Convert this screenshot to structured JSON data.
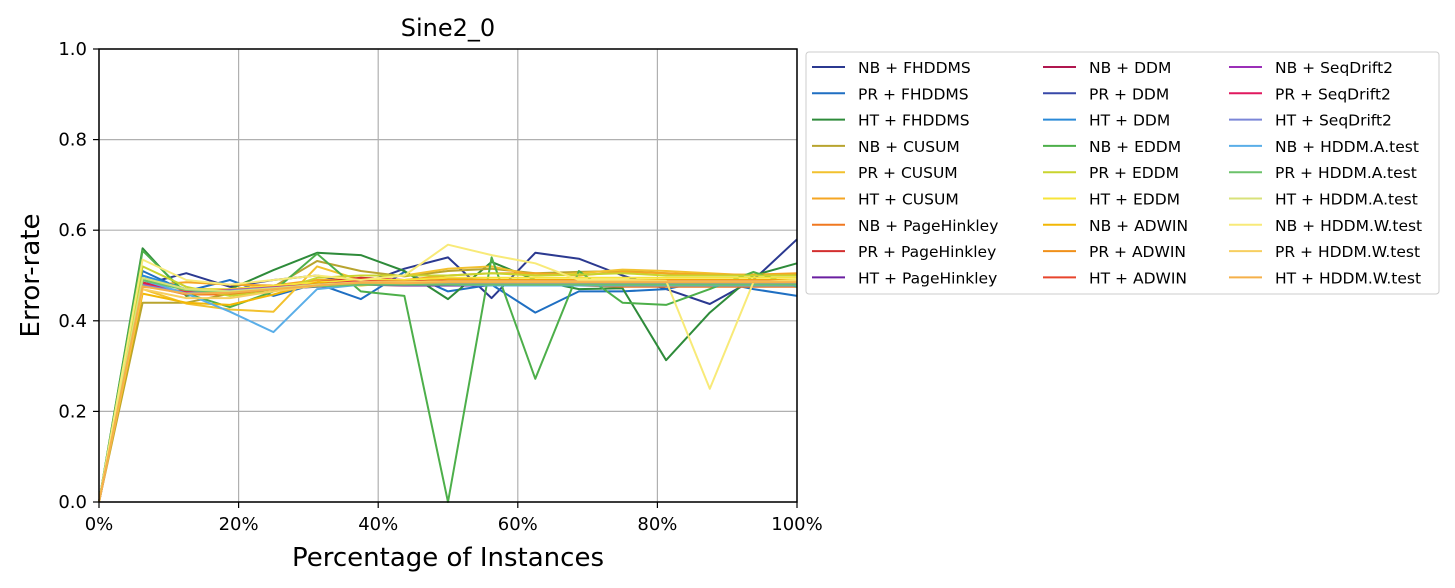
{
  "chart_data": {
    "type": "line",
    "title": "Sine2_0",
    "xlabel": "Percentage of Instances",
    "ylabel": "Error-rate",
    "xlim": [
      0,
      100
    ],
    "ylim": [
      0.0,
      1.0
    ],
    "x_tick_labels": [
      "0%",
      "20%",
      "40%",
      "60%",
      "80%",
      "100%"
    ],
    "x_ticks": [
      0,
      20,
      40,
      60,
      80,
      100
    ],
    "y_tick_labels": [
      "0.0",
      "0.2",
      "0.4",
      "0.6",
      "0.8",
      "1.0"
    ],
    "y_ticks": [
      0.0,
      0.2,
      0.4,
      0.6,
      0.8,
      1.0
    ],
    "grid": true,
    "legend_position": "outside-right",
    "legend_columns": 3,
    "x": [
      0,
      6.25,
      12.5,
      18.75,
      25,
      31.25,
      37.5,
      43.75,
      50,
      56.25,
      62.5,
      68.75,
      75,
      81.25,
      87.5,
      93.75,
      100
    ],
    "series": [
      {
        "name": "NB + FHDDMS",
        "color": "#2b3990",
        "values": [
          0,
          0.48,
          0.505,
          0.475,
          0.49,
          0.5,
          0.48,
          0.515,
          0.54,
          0.45,
          0.55,
          0.537,
          0.5,
          0.47,
          0.437,
          0.49,
          0.58
        ]
      },
      {
        "name": "PR + FHDDMS",
        "color": "#1f6fc2",
        "values": [
          0,
          0.51,
          0.465,
          0.49,
          0.455,
          0.482,
          0.448,
          0.508,
          0.465,
          0.48,
          0.418,
          0.465,
          0.465,
          0.47,
          0.49,
          0.47,
          0.455
        ]
      },
      {
        "name": "HT + FHDDMS",
        "color": "#2e8b3a",
        "values": [
          0,
          0.56,
          0.455,
          0.47,
          0.512,
          0.55,
          0.545,
          0.51,
          0.448,
          0.53,
          0.49,
          0.47,
          0.472,
          0.313,
          0.418,
          0.5,
          0.527
        ]
      },
      {
        "name": "NB + CUSUM",
        "color": "#b8a42f",
        "values": [
          0,
          0.44,
          0.44,
          0.46,
          0.475,
          0.532,
          0.51,
          0.498,
          0.51,
          0.515,
          0.505,
          0.508,
          0.51,
          0.505,
          0.5,
          0.502,
          0.502
        ]
      },
      {
        "name": "PR + CUSUM",
        "color": "#f2c12e",
        "values": [
          0,
          0.47,
          0.438,
          0.425,
          0.42,
          0.52,
          0.49,
          0.5,
          0.515,
          0.52,
          0.5,
          0.505,
          0.513,
          0.51,
          0.505,
          0.5,
          0.5
        ]
      },
      {
        "name": "HT + CUSUM",
        "color": "#f5a623",
        "values": [
          0,
          0.478,
          0.485,
          0.48,
          0.478,
          0.49,
          0.492,
          0.49,
          0.5,
          0.505,
          0.505,
          0.5,
          0.508,
          0.505,
          0.502,
          0.502,
          0.505
        ]
      },
      {
        "name": "NB + PageHinkley",
        "color": "#f07820",
        "values": [
          0,
          0.48,
          0.458,
          0.458,
          0.47,
          0.478,
          0.48,
          0.478,
          0.48,
          0.478,
          0.478,
          0.478,
          0.475,
          0.475,
          0.475,
          0.475,
          0.475
        ]
      },
      {
        "name": "PR + PageHinkley",
        "color": "#d32f2f",
        "values": [
          0,
          0.485,
          0.46,
          0.47,
          0.478,
          0.485,
          0.495,
          0.49,
          0.492,
          0.49,
          0.49,
          0.488,
          0.49,
          0.49,
          0.49,
          0.49,
          0.49
        ]
      },
      {
        "name": "HT + PageHinkley",
        "color": "#6a1fa0",
        "values": [
          0,
          0.48,
          0.46,
          0.465,
          0.47,
          0.475,
          0.48,
          0.478,
          0.478,
          0.478,
          0.478,
          0.478,
          0.478,
          0.478,
          0.478,
          0.478,
          0.478
        ]
      },
      {
        "name": "NB + DDM",
        "color": "#b0174f",
        "values": [
          0,
          0.48,
          0.462,
          0.466,
          0.472,
          0.478,
          0.482,
          0.48,
          0.482,
          0.48,
          0.48,
          0.48,
          0.48,
          0.48,
          0.48,
          0.48,
          0.48
        ]
      },
      {
        "name": "PR + DDM",
        "color": "#3848a8",
        "values": [
          0,
          0.478,
          0.46,
          0.468,
          0.474,
          0.48,
          0.485,
          0.483,
          0.485,
          0.484,
          0.484,
          0.484,
          0.484,
          0.484,
          0.484,
          0.484,
          0.484
        ]
      },
      {
        "name": "HT + DDM",
        "color": "#2a8ad8",
        "values": [
          0,
          0.5,
          0.47,
          0.47,
          0.475,
          0.478,
          0.48,
          0.48,
          0.48,
          0.48,
          0.48,
          0.48,
          0.48,
          0.48,
          0.48,
          0.48,
          0.48
        ]
      },
      {
        "name": "NB + EDDM",
        "color": "#4daf4a",
        "values": [
          0,
          0.555,
          0.46,
          0.43,
          0.465,
          0.548,
          0.465,
          0.455,
          0.0,
          0.54,
          0.272,
          0.51,
          0.44,
          0.435,
          0.47,
          0.508,
          0.475
        ]
      },
      {
        "name": "PR + EDDM",
        "color": "#c9d42e",
        "values": [
          0,
          0.52,
          0.475,
          0.455,
          0.465,
          0.495,
          0.5,
          0.5,
          0.5,
          0.505,
          0.5,
          0.502,
          0.505,
          0.5,
          0.5,
          0.5,
          0.5
        ]
      },
      {
        "name": "HT + EDDM",
        "color": "#f7e43a",
        "values": [
          0,
          0.49,
          0.47,
          0.47,
          0.478,
          0.485,
          0.49,
          0.49,
          0.495,
          0.495,
          0.495,
          0.495,
          0.495,
          0.495,
          0.495,
          0.495,
          0.495
        ]
      },
      {
        "name": "NB + ADWIN",
        "color": "#f2b705",
        "values": [
          0,
          0.46,
          0.44,
          0.435,
          0.458,
          0.485,
          0.478,
          0.485,
          0.49,
          0.49,
          0.49,
          0.49,
          0.49,
          0.49,
          0.49,
          0.49,
          0.49
        ]
      },
      {
        "name": "PR + ADWIN",
        "color": "#f0901a",
        "values": [
          0,
          0.475,
          0.465,
          0.46,
          0.47,
          0.478,
          0.485,
          0.485,
          0.487,
          0.488,
          0.488,
          0.488,
          0.488,
          0.488,
          0.488,
          0.488,
          0.488
        ]
      },
      {
        "name": "HT + ADWIN",
        "color": "#e8452c",
        "values": [
          0,
          0.48,
          0.462,
          0.465,
          0.472,
          0.48,
          0.488,
          0.486,
          0.488,
          0.488,
          0.488,
          0.488,
          0.488,
          0.488,
          0.488,
          0.488,
          0.488
        ]
      },
      {
        "name": "NB + SeqDrift2",
        "color": "#9b2fb8",
        "values": [
          0,
          0.478,
          0.46,
          0.466,
          0.472,
          0.478,
          0.482,
          0.48,
          0.481,
          0.481,
          0.481,
          0.481,
          0.481,
          0.481,
          0.481,
          0.481,
          0.481
        ]
      },
      {
        "name": "PR + SeqDrift2",
        "color": "#e0185f",
        "values": [
          0,
          0.482,
          0.463,
          0.468,
          0.474,
          0.48,
          0.486,
          0.484,
          0.486,
          0.486,
          0.486,
          0.486,
          0.486,
          0.486,
          0.486,
          0.486,
          0.486
        ]
      },
      {
        "name": "HT + SeqDrift2",
        "color": "#7b86d8",
        "values": [
          0,
          0.479,
          0.461,
          0.467,
          0.473,
          0.479,
          0.483,
          0.482,
          0.483,
          0.483,
          0.483,
          0.483,
          0.483,
          0.483,
          0.483,
          0.483,
          0.483
        ]
      },
      {
        "name": "NB + HDDM.A.test",
        "color": "#5aaee8",
        "values": [
          0,
          0.49,
          0.46,
          0.42,
          0.375,
          0.47,
          0.48,
          0.48,
          0.48,
          0.478,
          0.478,
          0.478,
          0.478,
          0.478,
          0.478,
          0.478,
          0.478
        ]
      },
      {
        "name": "PR + HDDM.A.test",
        "color": "#6cc26a",
        "values": [
          0,
          0.49,
          0.468,
          0.462,
          0.47,
          0.476,
          0.48,
          0.48,
          0.48,
          0.48,
          0.48,
          0.48,
          0.48,
          0.48,
          0.48,
          0.48,
          0.48
        ]
      },
      {
        "name": "HT + HDDM.A.test",
        "color": "#d8e27a",
        "values": [
          0,
          0.495,
          0.47,
          0.465,
          0.472,
          0.48,
          0.485,
          0.485,
          0.487,
          0.487,
          0.487,
          0.487,
          0.487,
          0.487,
          0.487,
          0.487,
          0.487
        ]
      },
      {
        "name": "NB + HDDM.W.test",
        "color": "#f8ea78",
        "values": [
          0,
          0.535,
          0.49,
          0.48,
          0.49,
          0.5,
          0.49,
          0.5,
          0.568,
          0.545,
          0.527,
          0.49,
          0.49,
          0.488,
          0.25,
          0.485,
          0.49
        ]
      },
      {
        "name": "PR + HDDM.W.test",
        "color": "#f7cf60",
        "values": [
          0,
          0.47,
          0.45,
          0.45,
          0.465,
          0.478,
          0.485,
          0.485,
          0.487,
          0.487,
          0.487,
          0.487,
          0.487,
          0.487,
          0.487,
          0.487,
          0.487
        ]
      },
      {
        "name": "HT + HDDM.W.test",
        "color": "#f5b04a",
        "values": [
          0,
          0.476,
          0.46,
          0.462,
          0.47,
          0.478,
          0.484,
          0.483,
          0.485,
          0.485,
          0.485,
          0.485,
          0.485,
          0.485,
          0.485,
          0.485,
          0.485
        ]
      }
    ]
  }
}
